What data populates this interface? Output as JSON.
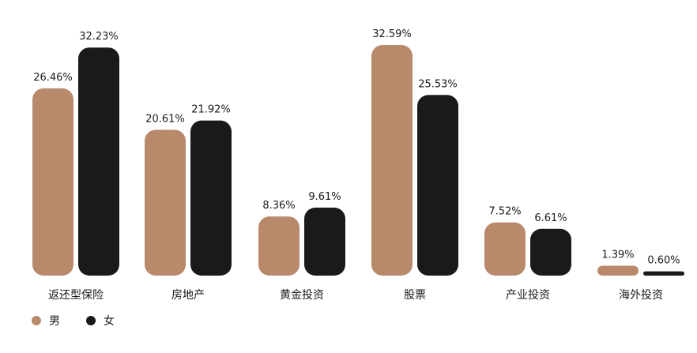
{
  "chart_data": {
    "type": "bar",
    "categories": [
      "返还型保险",
      "房地产",
      "黄金投资",
      "股票",
      "产业投资",
      "海外投资"
    ],
    "series": [
      {
        "name": "男",
        "color": "#b8896a",
        "values": [
          26.46,
          20.61,
          8.36,
          32.59,
          7.52,
          1.39
        ],
        "labels": [
          "26.46%",
          "20.61%",
          "8.36%",
          "32.59%",
          "7.52%",
          "1.39%"
        ]
      },
      {
        "name": "女",
        "color": "#1a1a1c",
        "values": [
          32.23,
          21.92,
          9.61,
          25.53,
          6.61,
          0.6
        ],
        "labels": [
          "32.23%",
          "21.92%",
          "9.61%",
          "25.53%",
          "6.61%",
          "0.60%"
        ]
      }
    ],
    "unit": "%",
    "ylim": [
      0,
      32.59
    ],
    "grid": false,
    "legend": "bottom-left"
  }
}
